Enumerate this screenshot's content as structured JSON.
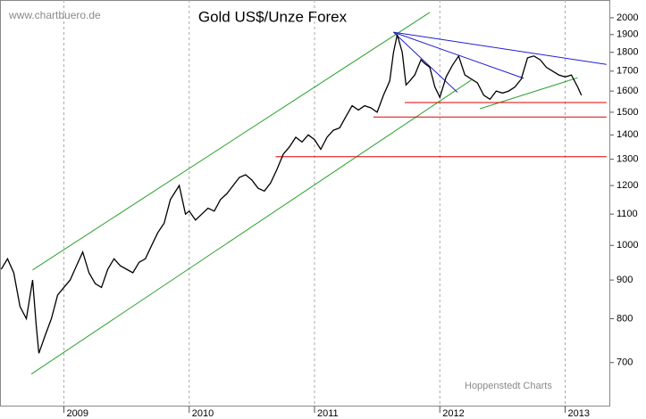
{
  "chart_data": {
    "type": "line",
    "title": "Gold US$/Unze Forex",
    "source": "www.chartbuero.de",
    "credit": "Hoppenstedt Charts",
    "log_scale": true,
    "grid": true,
    "color": "#000000",
    "xlim": [
      2008.49,
      2013.36
    ],
    "xticks": [
      2009,
      2010,
      2011,
      2012,
      2013
    ],
    "ylim": [
      614,
      2111
    ],
    "yticks": [
      700,
      800,
      900,
      1000,
      1100,
      1200,
      1300,
      1400,
      1500,
      1600,
      1700,
      1800,
      1900,
      2000
    ],
    "x": [
      2008.5,
      2008.55,
      2008.6,
      2008.65,
      2008.7,
      2008.75,
      2008.78,
      2008.8,
      2008.85,
      2008.9,
      2008.95,
      2009.0,
      2009.05,
      2009.1,
      2009.15,
      2009.2,
      2009.25,
      2009.3,
      2009.35,
      2009.4,
      2009.45,
      2009.5,
      2009.55,
      2009.6,
      2009.65,
      2009.7,
      2009.75,
      2009.8,
      2009.85,
      2009.92,
      2009.97,
      2010.0,
      2010.05,
      2010.1,
      2010.15,
      2010.2,
      2010.25,
      2010.3,
      2010.35,
      2010.4,
      2010.45,
      2010.5,
      2010.55,
      2010.6,
      2010.65,
      2010.7,
      2010.75,
      2010.8,
      2010.85,
      2010.9,
      2010.95,
      2011.0,
      2011.05,
      2011.1,
      2011.15,
      2011.2,
      2011.25,
      2011.3,
      2011.35,
      2011.4,
      2011.45,
      2011.5,
      2011.55,
      2011.6,
      2011.63,
      2011.66,
      2011.7,
      2011.73,
      2011.76,
      2011.8,
      2011.85,
      2011.88,
      2011.92,
      2011.96,
      2012.0,
      2012.05,
      2012.1,
      2012.15,
      2012.2,
      2012.25,
      2012.3,
      2012.35,
      2012.4,
      2012.45,
      2012.5,
      2012.55,
      2012.6,
      2012.65,
      2012.7,
      2012.75,
      2012.8,
      2012.85,
      2012.9,
      2012.95,
      2013.0,
      2013.05,
      2013.1,
      2013.13
    ],
    "values": [
      930,
      960,
      920,
      830,
      800,
      900,
      780,
      720,
      760,
      800,
      860,
      880,
      900,
      940,
      980,
      920,
      890,
      880,
      930,
      960,
      940,
      930,
      920,
      950,
      960,
      1000,
      1040,
      1070,
      1150,
      1200,
      1100,
      1110,
      1080,
      1100,
      1120,
      1110,
      1150,
      1170,
      1200,
      1230,
      1240,
      1220,
      1190,
      1180,
      1210,
      1260,
      1320,
      1350,
      1390,
      1370,
      1400,
      1380,
      1340,
      1390,
      1420,
      1430,
      1480,
      1530,
      1510,
      1530,
      1520,
      1500,
      1580,
      1650,
      1800,
      1900,
      1800,
      1630,
      1650,
      1680,
      1760,
      1740,
      1720,
      1620,
      1570,
      1670,
      1730,
      1780,
      1680,
      1660,
      1640,
      1580,
      1560,
      1600,
      1590,
      1600,
      1620,
      1660,
      1770,
      1780,
      1760,
      1720,
      1700,
      1680,
      1670,
      1680,
      1620,
      1580
    ],
    "trendlines": [
      {
        "color": "#2ca02c",
        "x": [
          2008.75,
          2011.92
        ],
        "values": [
          928,
          2033
        ]
      },
      {
        "color": "#2ca02c",
        "x": [
          2008.74,
          2012.25
        ],
        "values": [
          676,
          1654
        ]
      },
      {
        "color": "#2ca02c",
        "x": [
          2012.32,
          2013.1
        ],
        "values": [
          1516,
          1666
        ]
      },
      {
        "color": "#1f1fd0",
        "x": [
          2011.63,
          2013.33
        ],
        "values": [
          1914,
          1735
        ]
      },
      {
        "color": "#1f1fd0",
        "x": [
          2011.63,
          2012.67
        ],
        "values": [
          1914,
          1663
        ]
      },
      {
        "color": "#1f1fd0",
        "x": [
          2011.63,
          2012.14
        ],
        "values": [
          1914,
          1594
        ]
      },
      {
        "color": "#e00000",
        "x": [
          2011.72,
          2013.33
        ],
        "values": [
          1545,
          1545
        ]
      },
      {
        "color": "#e00000",
        "x": [
          2011.47,
          2013.33
        ],
        "values": [
          1478,
          1478
        ]
      },
      {
        "color": "#e00000",
        "x": [
          2010.69,
          2013.33
        ],
        "values": [
          1310,
          1310
        ]
      }
    ]
  }
}
